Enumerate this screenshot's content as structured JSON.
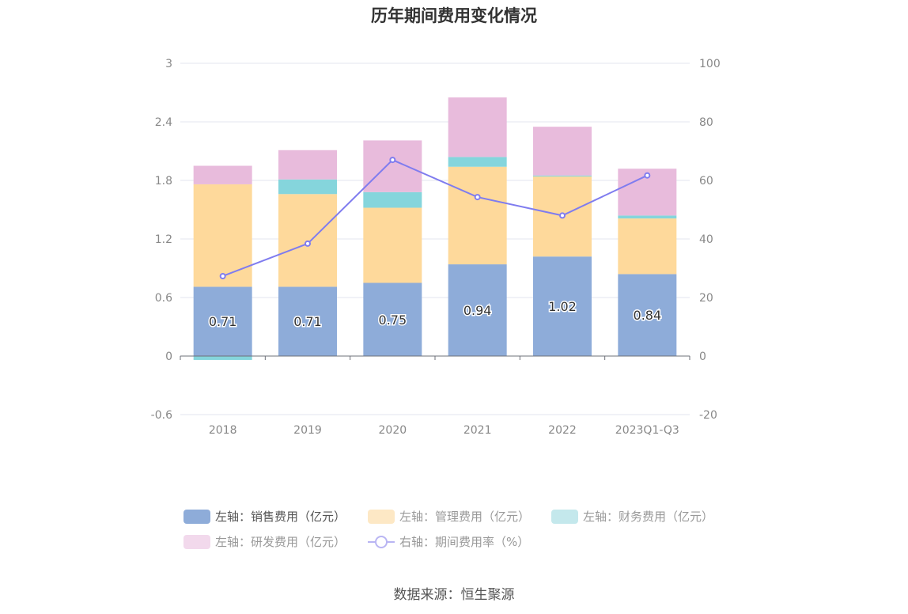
{
  "title": "历年期间费用变化情况",
  "source": "数据来源：恒生聚源",
  "legend": [
    {
      "label": "左轴：销售费用（亿元）",
      "color": "#8eacd9",
      "type": "bar",
      "active": true
    },
    {
      "label": "左轴：管理费用（亿元）",
      "color": "#fde8c5",
      "type": "bar",
      "active": false
    },
    {
      "label": "左轴：财务费用（亿元）",
      "color": "#c4e8ec",
      "type": "bar",
      "active": false
    },
    {
      "label": "左轴：研发费用（亿元）",
      "color": "#f2d9ec",
      "type": "bar",
      "active": false
    },
    {
      "label": "右轴：期间费用率（%）",
      "color": "#b9b5f3",
      "type": "line",
      "active": false
    }
  ],
  "chart_data": {
    "type": "bar",
    "title": "历年期间费用变化情况",
    "categories": [
      "2018",
      "2019",
      "2020",
      "2021",
      "2022",
      "2023Q1-Q3"
    ],
    "left_axis": {
      "ylim": [
        -0.6,
        3
      ],
      "ticks": [
        "-0.6",
        "0",
        "0.6",
        "1.2",
        "1.8",
        "2.4",
        "3"
      ],
      "tick_values": [
        -0.6,
        0,
        0.6,
        1.2,
        1.8,
        2.4,
        3
      ]
    },
    "right_axis": {
      "ylim": [
        -20,
        100
      ],
      "ticks": [
        "-20",
        "0",
        "20",
        "40",
        "60",
        "80",
        "100"
      ],
      "tick_values": [
        -20,
        0,
        20,
        40,
        60,
        80,
        100
      ]
    },
    "series": [
      {
        "name": "左轴：销售费用（亿元）",
        "axis": "left",
        "stack": true,
        "color": "#8eacd9",
        "values": [
          0.71,
          0.71,
          0.75,
          0.94,
          1.02,
          0.84
        ],
        "labels": [
          "0.71",
          "0.71",
          "0.75",
          "0.94",
          "1.02",
          "0.84"
        ]
      },
      {
        "name": "左轴：管理费用（亿元）",
        "axis": "left",
        "stack": true,
        "color": "#fed99b",
        "values": [
          1.05,
          0.95,
          0.77,
          1.0,
          0.82,
          0.57
        ]
      },
      {
        "name": "左轴：财务费用（亿元）",
        "axis": "left",
        "stack": true,
        "color": "#85d5dc",
        "values": [
          -0.04,
          0.15,
          0.16,
          0.1,
          0.01,
          0.03
        ]
      },
      {
        "name": "左轴：研发费用（亿元）",
        "axis": "left",
        "stack": true,
        "color": "#e8bbdc",
        "values": [
          0.19,
          0.3,
          0.53,
          0.61,
          0.5,
          0.48
        ]
      },
      {
        "name": "右轴：期间费用率（%）",
        "axis": "right",
        "type": "line",
        "color": "#7f7cef",
        "values": [
          27.3,
          38.4,
          67.0,
          54.3,
          48.0,
          61.7
        ]
      }
    ],
    "grid": true,
    "legend_position": "bottom"
  }
}
